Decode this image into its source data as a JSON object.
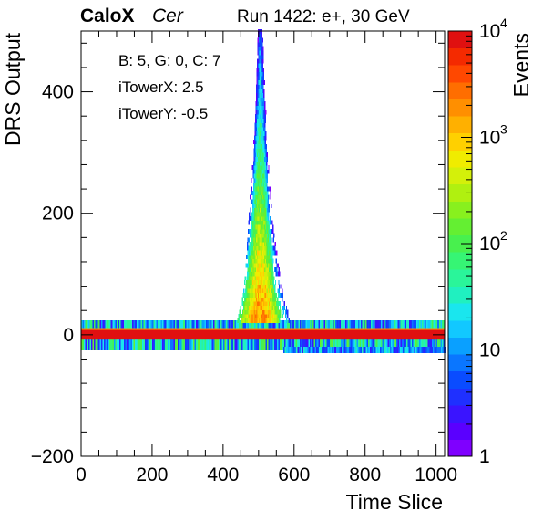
{
  "header": {
    "experiment": "CaloX",
    "channel": "Cer",
    "run_info": "Run 1422: e+, 30 GeV"
  },
  "annotations": [
    "B: 5, G: 0, C: 7",
    "iTowerX: 2.5",
    "iTowerY: -0.5"
  ],
  "chart_data": {
    "type": "heatmap",
    "xlabel": "Time Slice",
    "ylabel": "DRS Output",
    "zlabel": "Events",
    "xlim": [
      0,
      1024
    ],
    "ylim": [
      -200,
      500
    ],
    "zlim": [
      1,
      10000
    ],
    "z_log_scale": true,
    "x_ticks": [
      0,
      200,
      400,
      600,
      800,
      1000
    ],
    "y_ticks": [
      -200,
      0,
      200,
      400
    ],
    "z_tick_labels": [
      {
        "value": 1,
        "label": "1"
      },
      {
        "value": 10,
        "label": "10"
      },
      {
        "value": 100,
        "label": "10",
        "exp": "2"
      },
      {
        "value": 1000,
        "label": "10",
        "exp": "3"
      },
      {
        "value": 10000,
        "label": "10",
        "exp": "4"
      }
    ],
    "baseline": {
      "core": {
        "x": [
          0,
          1024
        ],
        "y": [
          -8,
          8
        ],
        "z": 10000
      },
      "upper_band": {
        "x": [
          0,
          1024
        ],
        "y": [
          8,
          24
        ],
        "z": 15
      },
      "lower_band": {
        "x": [
          0,
          1024
        ],
        "y": [
          -24,
          -8
        ],
        "z": 20
      }
    },
    "undershoot_band": {
      "x": [
        570,
        1024
      ],
      "y": [
        -30,
        -20
      ],
      "z": 10
    },
    "pulse": {
      "x_peak": 505,
      "profile": [
        {
          "y": 20,
          "x": [
            440,
            590
          ]
        },
        {
          "y": 60,
          "x": [
            455,
            570
          ]
        },
        {
          "y": 100,
          "x": [
            462,
            558
          ]
        },
        {
          "y": 150,
          "x": [
            468,
            546
          ]
        },
        {
          "y": 200,
          "x": [
            473,
            537
          ]
        },
        {
          "y": 260,
          "x": [
            478,
            530
          ]
        },
        {
          "y": 320,
          "x": [
            482,
            524
          ]
        },
        {
          "y": 380,
          "x": [
            486,
            520
          ]
        },
        {
          "y": 440,
          "x": [
            489,
            517
          ]
        },
        {
          "y": 500,
          "x": [
            492,
            514
          ]
        }
      ]
    },
    "palette": [
      "#7f00ff",
      "#5a00ff",
      "#3a14ff",
      "#1f30ff",
      "#0a4cff",
      "#0a76ff",
      "#0aa0ff",
      "#12c8ff",
      "#1ae6ee",
      "#20f0c0",
      "#2af59a",
      "#36f574",
      "#48f04e",
      "#64ef32",
      "#88f01e",
      "#b0f010",
      "#d4f00a",
      "#f0ec00",
      "#ffd000",
      "#ffb000",
      "#ff8f00",
      "#ff6e00",
      "#ff4800",
      "#f42a00",
      "#e01010"
    ]
  }
}
